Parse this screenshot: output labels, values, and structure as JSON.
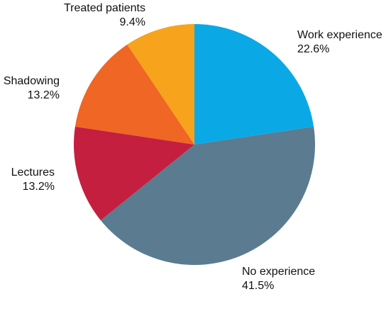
{
  "chart_data": {
    "type": "pie",
    "title": "",
    "slices": [
      {
        "label": "Work experience",
        "value": 22.6,
        "display": "22.6%",
        "color": "#0aa9e6"
      },
      {
        "label": "No experience",
        "value": 41.5,
        "display": "41.5%",
        "color": "#5b7b90"
      },
      {
        "label": "Lectures",
        "value": 13.2,
        "display": "13.2%",
        "color": "#c41f3f"
      },
      {
        "label": "Shadowing",
        "value": 13.2,
        "display": "13.2%",
        "color": "#ef6625"
      },
      {
        "label": "Treated patients",
        "value": 9.4,
        "display": "9.4%",
        "color": "#f7a31b"
      }
    ],
    "start_direction": "top",
    "direction": "clockwise",
    "legend": "none"
  }
}
